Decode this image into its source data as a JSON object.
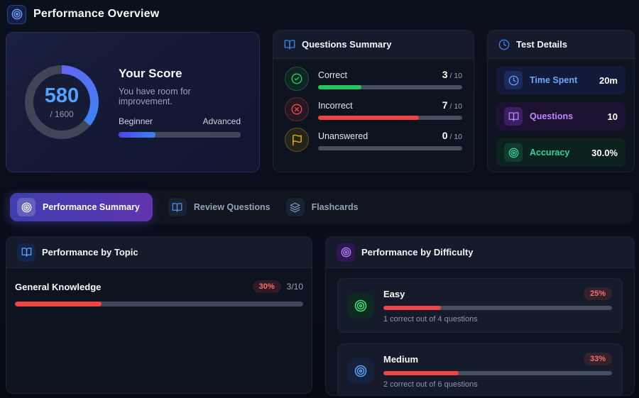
{
  "header": {
    "title": "Performance Overview"
  },
  "score_card": {
    "score": "580",
    "total": "/ 1600",
    "title": "Your Score",
    "subtitle": "You have room for improvement.",
    "scale_left": "Beginner",
    "scale_right": "Advanced",
    "progress_pct": 30,
    "gauge_pct": 36
  },
  "questions_summary": {
    "title": "Questions Summary",
    "rows": [
      {
        "label": "Correct",
        "value": "3",
        "total": "/ 10",
        "pct": 30,
        "color": "#22c55e",
        "icon": "check-circle-icon"
      },
      {
        "label": "Incorrect",
        "value": "7",
        "total": "/ 10",
        "pct": 70,
        "color": "#ef4444",
        "icon": "x-circle-icon"
      },
      {
        "label": "Unanswered",
        "value": "0",
        "total": "/ 10",
        "pct": 0,
        "color": "#eab308",
        "icon": "flag-icon"
      }
    ]
  },
  "test_details": {
    "title": "Test Details",
    "rows": [
      {
        "label": "Time Spent",
        "value": "20m",
        "icon": "clock-icon"
      },
      {
        "label": "Questions",
        "value": "10",
        "icon": "book-icon"
      },
      {
        "label": "Accuracy",
        "value": "30.0%",
        "icon": "target-icon"
      }
    ]
  },
  "tabs": [
    {
      "label": "Performance Summary",
      "active": true,
      "icon": "target-icon"
    },
    {
      "label": "Review Questions",
      "active": false,
      "icon": "book-icon"
    },
    {
      "label": "Flashcards",
      "active": false,
      "icon": "layers-icon"
    }
  ],
  "performance_by_topic": {
    "title": "Performance by Topic",
    "rows": [
      {
        "name": "General Knowledge",
        "badge": "30%",
        "fraction": "3/10",
        "pct": 30
      }
    ]
  },
  "performance_by_difficulty": {
    "title": "Performance by Difficulty",
    "rows": [
      {
        "name": "Easy",
        "badge": "25%",
        "subtitle": "1 correct out of 4 questions",
        "pct": 25
      },
      {
        "name": "Medium",
        "badge": "33%",
        "subtitle": "2 correct out of 6 questions",
        "pct": 33
      }
    ]
  },
  "colors": {
    "accent_blue": "#3b82f6",
    "green": "#22c55e",
    "red": "#ef4444",
    "amber": "#eab308",
    "purple": "#a855f7",
    "gauge_track": "#3e4759"
  }
}
